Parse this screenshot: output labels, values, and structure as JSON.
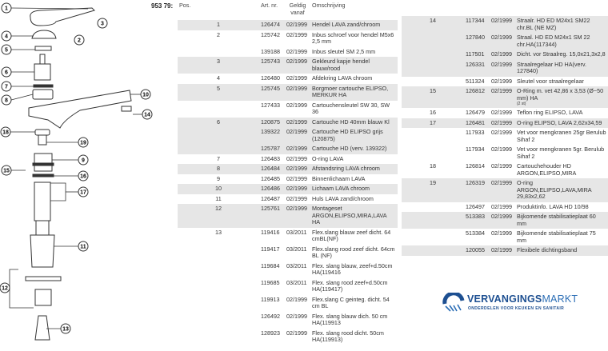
{
  "article_code": "953 79:",
  "diagram": {
    "labels": [
      "1",
      "2",
      "3",
      "4",
      "5",
      "6",
      "7",
      "8",
      "9",
      "10",
      "11",
      "12",
      "13",
      "14",
      "15",
      "16",
      "17",
      "18",
      "19"
    ]
  },
  "table": {
    "headers": {
      "pos": "Pos.",
      "art": "Art. nr.",
      "date": "Geldig vanaf",
      "desc": "Omschrijving"
    },
    "left_rows": [
      {
        "pos": "1",
        "art": "126474",
        "date": "02/1999",
        "desc": "Hendel LAVA zand/chroom",
        "shaded": true
      },
      {
        "pos": "2",
        "art": "125742",
        "date": "02/1999",
        "desc": "Inbus schroef voor hendel M5x6 2,5 mm",
        "shaded": false
      },
      {
        "pos": "",
        "art": "139188",
        "date": "02/1999",
        "desc": "Inbus sleutel SM 2,5 mm",
        "shaded": false
      },
      {
        "pos": "3",
        "art": "125743",
        "date": "02/1999",
        "desc": "Gekleurd kapje hendel blauw/rood",
        "shaded": true
      },
      {
        "pos": "4",
        "art": "126480",
        "date": "02/1999",
        "desc": "Afdekring LAVA chroom",
        "shaded": false
      },
      {
        "pos": "5",
        "art": "125745",
        "date": "02/1999",
        "desc": "Borgmoer cartouche ELIPSO, MERKUR HA",
        "shaded": true
      },
      {
        "pos": "",
        "art": "127433",
        "date": "02/1999",
        "desc": "Cartouchensleutel SW 30, SW 36",
        "shaded": false
      },
      {
        "pos": "6",
        "art": "120875",
        "date": "02/1999",
        "desc": "Cartouche HD 40mm blauw Kl",
        "shaded": true
      },
      {
        "pos": "",
        "art": "139322",
        "date": "02/1999",
        "desc": "Cartouche HD ELIPSO grijs (120875)",
        "shaded": true
      },
      {
        "pos": "",
        "art": "125787",
        "date": "02/1999",
        "desc": "Cartouche HD (verv. 139322)",
        "shaded": true
      },
      {
        "pos": "7",
        "art": "126483",
        "date": "02/1999",
        "desc": "O-ring LAVA",
        "shaded": false
      },
      {
        "pos": "8",
        "art": "126484",
        "date": "02/1999",
        "desc": "Afstandsring LAVA chroom",
        "shaded": true
      },
      {
        "pos": "9",
        "art": "126485",
        "date": "02/1999",
        "desc": "Binnenlichaam LAVA",
        "shaded": false
      },
      {
        "pos": "10",
        "art": "126486",
        "date": "02/1999",
        "desc": "Lichaam LAVA chroom",
        "shaded": true
      },
      {
        "pos": "11",
        "art": "126487",
        "date": "02/1999",
        "desc": "Huls LAVA zand/chroom",
        "shaded": false
      },
      {
        "pos": "12",
        "art": "125761",
        "date": "02/1999",
        "desc": "Montageset ARGON,ELIPSO,MIRA,LAVA HA",
        "shaded": true
      },
      {
        "pos": "13",
        "art": "119416",
        "date": "03/2011",
        "desc": "Flex.slang blauw zeef dicht. 64 cmBL(NF)",
        "shaded": false
      },
      {
        "pos": "",
        "art": "119417",
        "date": "03/2011",
        "desc": "Flex.slang rood zeef dicht. 64cm BL (NF)",
        "shaded": false
      },
      {
        "pos": "",
        "art": "119684",
        "date": "03/2011",
        "desc": "Flex. slang blauw, zeef+d.50cm HA(119416",
        "shaded": false
      },
      {
        "pos": "",
        "art": "119685",
        "date": "03/2011",
        "desc": "Flex. slang rood zeef+d.50cm HA(119417)",
        "shaded": false
      },
      {
        "pos": "",
        "art": "119913",
        "date": "02/1999",
        "desc": "Flex.slang C geinteg. dicht. 54 cm BL",
        "shaded": false
      },
      {
        "pos": "",
        "art": "126492",
        "date": "02/1999",
        "desc": "Flex. slang blauw dich. 50 cm HA(119913",
        "shaded": false
      },
      {
        "pos": "",
        "art": "128923",
        "date": "02/1999",
        "desc": "Flex. slang rood dicht. 50cm HA(119913)",
        "shaded": false
      }
    ],
    "right_rows": [
      {
        "pos": "14",
        "art": "117344",
        "date": "02/1999",
        "desc": "Straalr. HD ED M24x1 SM22 chr.BL (NE MZ)",
        "shaded": true
      },
      {
        "pos": "",
        "art": "127840",
        "date": "02/1999",
        "desc": "Straal. HD ED M24x1 SM 22 chr.HA(117344)",
        "shaded": true
      },
      {
        "pos": "",
        "art": "117501",
        "date": "02/1999",
        "desc": "Dicht. vor Straalreg. 15,0x21,3x2,8",
        "shaded": true
      },
      {
        "pos": "",
        "art": "126331",
        "date": "02/1999",
        "desc": "Straalregelaar HD HA(verv. 127840)",
        "shaded": true
      },
      {
        "pos": "",
        "art": "511324",
        "date": "02/1999",
        "desc": "Sleutel voor straalregelaar",
        "shaded": false
      },
      {
        "pos": "15",
        "art": "126812",
        "date": "02/1999",
        "desc": "O-Ring m. vet 42,86 x 3,53 (Ø~50 mm) HA",
        "note": "(2 st)",
        "shaded": true
      },
      {
        "pos": "16",
        "art": "126479",
        "date": "02/1999",
        "desc": "Teflon ring ELIPSO, LAVA",
        "shaded": false
      },
      {
        "pos": "17",
        "art": "126481",
        "date": "02/1999",
        "desc": "O-ring ELIPSO, LAVA 2,62x34,59",
        "shaded": true
      },
      {
        "pos": "",
        "art": "117933",
        "date": "02/1999",
        "desc": "Vet voor mengkranen 25gr Berulub Sihaf 2",
        "shaded": false
      },
      {
        "pos": "",
        "art": "117934",
        "date": "02/1999",
        "desc": "Vet voor mengkranen 5gr. Berulub Sihaf 2",
        "shaded": false
      },
      {
        "pos": "18",
        "art": "126814",
        "date": "02/1999",
        "desc": "Cartouchehouder HD ARGON,ELIPSO,MIRA",
        "shaded": false
      },
      {
        "pos": "19",
        "art": "126319",
        "date": "02/1999",
        "desc": "O-ring ARGON,ELIPSO,LAVA,MIRA 29,83x2,62",
        "shaded": true
      },
      {
        "pos": "",
        "art": "126497",
        "date": "02/1999",
        "desc": "Produktinfo. LAVA HD 10/98",
        "shaded": false
      },
      {
        "pos": "",
        "art": "513383",
        "date": "02/1999",
        "desc": "Bijkomende stabilisatieplaat 60 mm",
        "shaded": true
      },
      {
        "pos": "",
        "art": "513384",
        "date": "02/1999",
        "desc": "Bijkomende stabilisatieplaat 75 mm",
        "shaded": false
      },
      {
        "pos": "",
        "art": "120055",
        "date": "02/1999",
        "desc": "Flexibele dichtingsband",
        "shaded": true
      }
    ]
  },
  "logo": {
    "name_bold": "VERVANGINGS",
    "name_light": "MARKT",
    "tagline": "ONDERDELEN VOOR KEUKEN EN SANITAIR",
    "color": "#1d4f91"
  }
}
